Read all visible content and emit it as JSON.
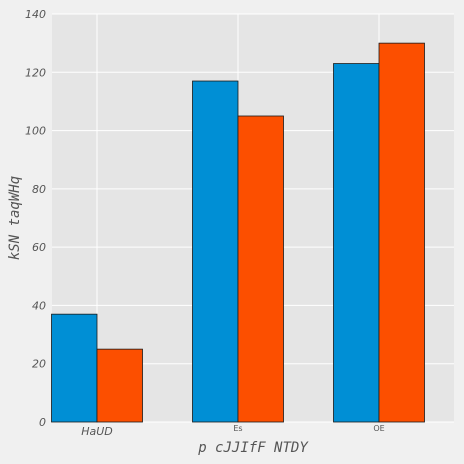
{
  "chart_data": {
    "type": "bar",
    "title": "",
    "xlabel": "p cJJIfF NTDY",
    "ylabel": "kSN  taqWHq",
    "categories": [
      "HaUD",
      "Es",
      "OE"
    ],
    "category_label_styles": [
      "italic",
      "small",
      "small"
    ],
    "series": [
      {
        "color": "#008fd5",
        "values": [
          37,
          117,
          123
        ]
      },
      {
        "color": "#fc4f00",
        "values": [
          25,
          105,
          130
        ]
      }
    ],
    "ylim": [
      0,
      140
    ],
    "yticks": [
      0,
      20,
      40,
      60,
      80,
      100,
      120,
      140
    ],
    "grid": true,
    "legend": "none",
    "background": "#e5e5e5",
    "figure_background": "#f0f0f0"
  }
}
